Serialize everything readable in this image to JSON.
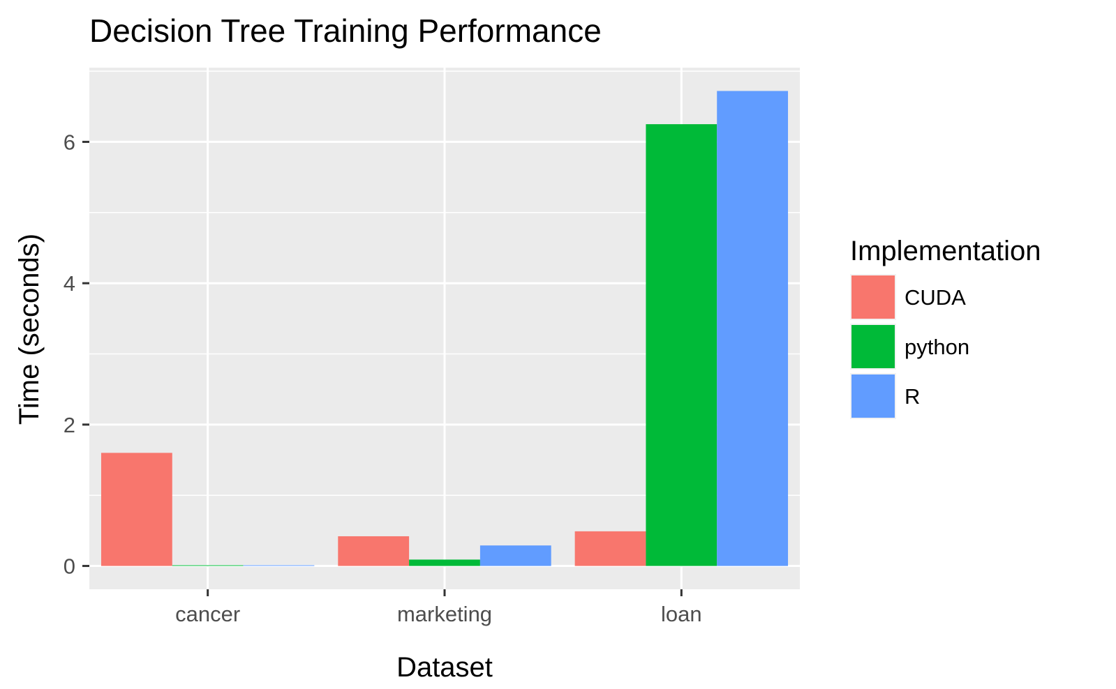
{
  "chart_data": {
    "type": "bar",
    "title": "Decision Tree Training Performance",
    "xlabel": "Dataset",
    "ylabel": "Time (seconds)",
    "categories": [
      "cancer",
      "marketing",
      "loan"
    ],
    "series": [
      {
        "name": "CUDA",
        "color": "#F8766D",
        "values": [
          1.6,
          0.42,
          0.49
        ]
      },
      {
        "name": "python",
        "color": "#00BA38",
        "values": [
          0.0,
          0.09,
          6.25
        ]
      },
      {
        "name": "R",
        "color": "#619CFF",
        "values": [
          0.01,
          0.29,
          6.72
        ]
      }
    ],
    "ylim": [
      -0.33,
      7.05
    ],
    "yticks": [
      0,
      2,
      4,
      6
    ],
    "legend": {
      "title": "Implementation",
      "position": "right"
    },
    "grid": true,
    "panel_background": "#EBEBEB"
  }
}
